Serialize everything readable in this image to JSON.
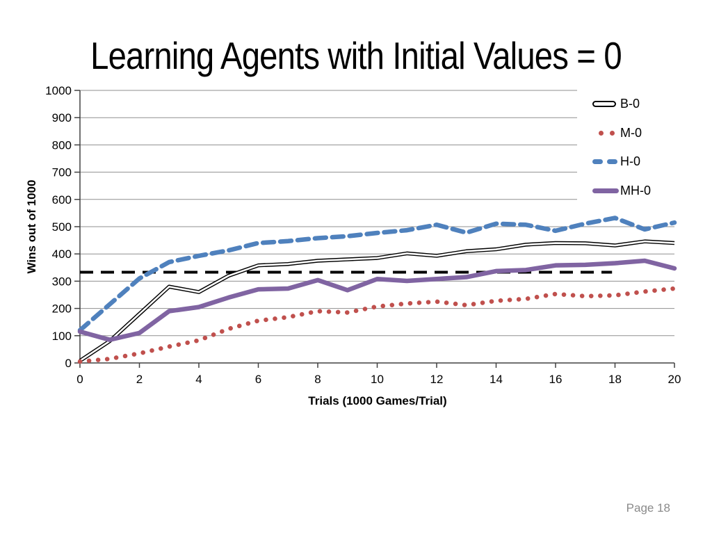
{
  "footer": {
    "page_label": "Page 18"
  },
  "chart_data": {
    "type": "line",
    "title": "Learning Agents with Initial Values = 0",
    "xlabel": "Trials (1000 Games/Trial)",
    "ylabel": "Wins out of 1000",
    "xlim": [
      0,
      20
    ],
    "ylim": [
      0,
      1000
    ],
    "x_ticks": [
      0,
      2,
      4,
      6,
      8,
      10,
      12,
      14,
      16,
      18,
      20
    ],
    "y_ticks": [
      0,
      100,
      200,
      300,
      400,
      500,
      600,
      700,
      800,
      900,
      1000
    ],
    "grid": "horizontal-only",
    "grid_color": "#8f8f8f",
    "axis_color": "#404040",
    "legend_position": "top-right-inside",
    "x": [
      0,
      1,
      2,
      3,
      4,
      5,
      6,
      7,
      8,
      9,
      10,
      11,
      12,
      13,
      14,
      15,
      16,
      17,
      18,
      19,
      20
    ],
    "series": [
      {
        "name": "B-0",
        "style": "double-line",
        "color": "#000000",
        "values": [
          8,
          80,
          180,
          280,
          260,
          320,
          358,
          363,
          375,
          380,
          385,
          402,
          393,
          410,
          417,
          434,
          440,
          439,
          431,
          446,
          440
        ]
      },
      {
        "name": "M-0",
        "style": "dotted",
        "color": "#C0504D",
        "values": [
          5,
          15,
          35,
          60,
          83,
          125,
          155,
          168,
          190,
          185,
          207,
          218,
          225,
          212,
          228,
          235,
          253,
          245,
          248,
          262,
          273
        ]
      },
      {
        "name": "H-0",
        "style": "dashed",
        "color": "#4F81BD",
        "values": [
          120,
          215,
          310,
          370,
          393,
          413,
          440,
          447,
          458,
          465,
          477,
          487,
          507,
          478,
          511,
          507,
          485,
          511,
          532,
          490,
          515
        ]
      },
      {
        "name": "MH-0",
        "style": "solid",
        "color": "#8064A2",
        "values": [
          115,
          85,
          110,
          190,
          205,
          240,
          270,
          273,
          304,
          267,
          308,
          301,
          308,
          315,
          337,
          341,
          358,
          360,
          366,
          375,
          347
        ]
      }
    ],
    "reference_line": {
      "value": 333,
      "x_start": 0,
      "x_end": 17.9,
      "style": "dashed",
      "color": "#000000"
    }
  }
}
